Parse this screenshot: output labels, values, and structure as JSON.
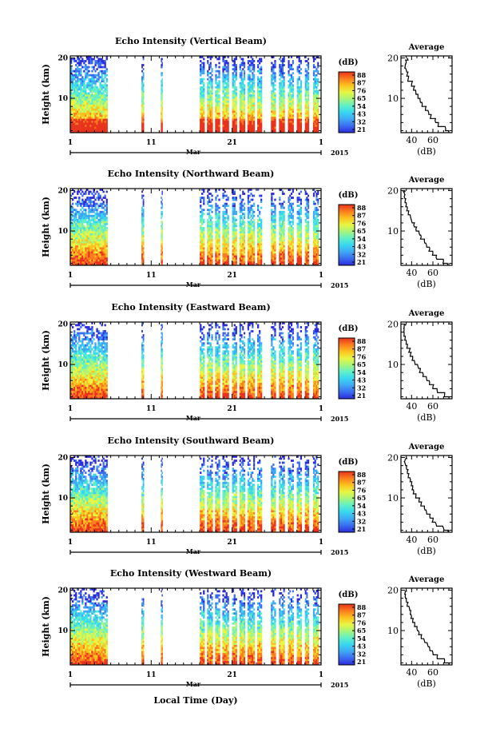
{
  "chart_data": {
    "type": "heatmap",
    "figure": {
      "xlabel": "Local Time (Day)",
      "month_label": "Mar",
      "year_label": "2015"
    },
    "colormap": [
      "#2b2bd9",
      "#3a6cf0",
      "#3fa8f5",
      "#38d6f0",
      "#5ff0c8",
      "#a8f57a",
      "#e8f542",
      "#fcc21f",
      "#fb7d1e",
      "#e8331c"
    ],
    "panels": [
      {
        "title": "Echo Intensity (Vertical Beam)",
        "ylabel": "Height (km)",
        "y_ticks": [
          "20",
          "10"
        ],
        "x_ticks": [
          "1",
          "11",
          "21",
          "1"
        ],
        "x_range_days": [
          1,
          32
        ],
        "y_range_km": [
          1.5,
          20.5
        ],
        "colorbar_unit": "(dB)",
        "colorbar_labels": [
          "88",
          "87",
          "76",
          "65",
          "54",
          "43",
          "32",
          "21"
        ],
        "avg_title": "Average",
        "avg_xlabel": "(dB)",
        "avg_x_ticks": [
          "40",
          "60"
        ],
        "avg_xlim": [
          30,
          78
        ],
        "avg_profile": [
          [
            75,
            1.5
          ],
          [
            72,
            2.5
          ],
          [
            65,
            3.5
          ],
          [
            62,
            4.5
          ],
          [
            58,
            5.5
          ],
          [
            56,
            6.5
          ],
          [
            53,
            7.5
          ],
          [
            50,
            8.5
          ],
          [
            48,
            9.5
          ],
          [
            46,
            10.5
          ],
          [
            44,
            11.5
          ],
          [
            42,
            12.5
          ],
          [
            40,
            13.5
          ],
          [
            37,
            15
          ],
          [
            36,
            16
          ],
          [
            35,
            17
          ],
          [
            34,
            18
          ],
          [
            35,
            19
          ],
          [
            36,
            20
          ]
        ]
      },
      {
        "title": "Echo Intensity (Northward Beam)",
        "ylabel": "Height (km)",
        "y_ticks": [
          "20",
          "10"
        ],
        "x_ticks": [
          "1",
          "11",
          "21",
          "1"
        ],
        "x_range_days": [
          1,
          32
        ],
        "y_range_km": [
          1.5,
          20.5
        ],
        "colorbar_unit": "(dB)",
        "colorbar_labels": [
          "88",
          "87",
          "76",
          "65",
          "54",
          "43",
          "32",
          "21"
        ],
        "avg_title": "Average",
        "avg_xlabel": "(dB)",
        "avg_x_ticks": [
          "40",
          "60"
        ],
        "avg_xlim": [
          30,
          78
        ],
        "avg_profile": [
          [
            74,
            1.5
          ],
          [
            70,
            2.5
          ],
          [
            63,
            3.5
          ],
          [
            60,
            4.5
          ],
          [
            57,
            5.5
          ],
          [
            54,
            6.5
          ],
          [
            52,
            7.5
          ],
          [
            49,
            8.5
          ],
          [
            47,
            9.5
          ],
          [
            44,
            10.5
          ],
          [
            42,
            11.5
          ],
          [
            40,
            12.5
          ],
          [
            39,
            13.5
          ],
          [
            37,
            14.5
          ],
          [
            36,
            15.5
          ],
          [
            35,
            16.5
          ],
          [
            34,
            17.5
          ],
          [
            33,
            18.5
          ],
          [
            33,
            19.5
          ],
          [
            34,
            20
          ]
        ]
      },
      {
        "title": "Echo Intensity (Eastward Beam)",
        "ylabel": "Height (km)",
        "y_ticks": [
          "20",
          "10"
        ],
        "x_ticks": [
          "1",
          "11",
          "21",
          "1"
        ],
        "x_range_days": [
          1,
          32
        ],
        "y_range_km": [
          1.5,
          20.5
        ],
        "colorbar_unit": "(dB)",
        "colorbar_labels": [
          "88",
          "87",
          "76",
          "65",
          "54",
          "43",
          "32",
          "21"
        ],
        "avg_title": "Average",
        "avg_xlabel": "(dB)",
        "avg_x_ticks": [
          "40",
          "60"
        ],
        "avg_xlim": [
          30,
          78
        ],
        "avg_profile": [
          [
            75,
            1.5
          ],
          [
            71,
            2.5
          ],
          [
            64,
            3.5
          ],
          [
            60,
            4.5
          ],
          [
            57,
            5.5
          ],
          [
            54,
            6.5
          ],
          [
            51,
            7.5
          ],
          [
            48,
            8.5
          ],
          [
            46,
            9.5
          ],
          [
            43,
            10.5
          ],
          [
            41,
            11.5
          ],
          [
            39,
            12.5
          ],
          [
            38,
            13.5
          ],
          [
            36,
            14.5
          ],
          [
            35,
            15.5
          ],
          [
            34,
            16.5
          ],
          [
            33,
            17.5
          ],
          [
            33,
            18.5
          ],
          [
            33,
            19.5
          ],
          [
            34,
            20
          ]
        ]
      },
      {
        "title": "Echo Intensity (Southward Beam)",
        "ylabel": "Height (km)",
        "y_ticks": [
          "20",
          "10"
        ],
        "x_ticks": [
          "1",
          "11",
          "21",
          "1"
        ],
        "x_range_days": [
          1,
          32
        ],
        "y_range_km": [
          1.5,
          20.5
        ],
        "colorbar_unit": "(dB)",
        "colorbar_labels": [
          "88",
          "87",
          "76",
          "65",
          "54",
          "43",
          "32",
          "21"
        ],
        "avg_title": "Average",
        "avg_xlabel": "(dB)",
        "avg_x_ticks": [
          "40",
          "60"
        ],
        "avg_xlim": [
          30,
          78
        ],
        "avg_profile": [
          [
            74,
            1.5
          ],
          [
            70,
            2.5
          ],
          [
            63,
            3.5
          ],
          [
            60,
            4.5
          ],
          [
            57,
            5.5
          ],
          [
            54,
            6.5
          ],
          [
            52,
            7.5
          ],
          [
            49,
            8.5
          ],
          [
            47,
            9.5
          ],
          [
            44,
            10.5
          ],
          [
            42,
            11.5
          ],
          [
            41,
            12.5
          ],
          [
            40,
            13.5
          ],
          [
            39,
            14.5
          ],
          [
            37,
            15.5
          ],
          [
            36,
            16.5
          ],
          [
            35,
            17.5
          ],
          [
            34,
            18.5
          ],
          [
            34,
            19.5
          ],
          [
            35,
            20
          ]
        ]
      },
      {
        "title": "Echo Intensity (Westward Beam)",
        "ylabel": "Height (km)",
        "y_ticks": [
          "20",
          "10"
        ],
        "x_ticks": [
          "1",
          "11",
          "21",
          "1"
        ],
        "x_range_days": [
          1,
          32
        ],
        "y_range_km": [
          1.5,
          20.5
        ],
        "colorbar_unit": "(dB)",
        "colorbar_labels": [
          "88",
          "87",
          "76",
          "65",
          "54",
          "43",
          "32",
          "21"
        ],
        "avg_title": "Average",
        "avg_xlabel": "(dB)",
        "avg_x_ticks": [
          "40",
          "60"
        ],
        "avg_xlim": [
          30,
          78
        ],
        "avg_profile": [
          [
            75,
            1.5
          ],
          [
            71,
            2.5
          ],
          [
            64,
            3.5
          ],
          [
            60,
            4.5
          ],
          [
            57,
            5.5
          ],
          [
            55,
            6.5
          ],
          [
            52,
            7.5
          ],
          [
            49,
            8.5
          ],
          [
            47,
            9.5
          ],
          [
            45,
            10.5
          ],
          [
            43,
            11.5
          ],
          [
            41,
            12.5
          ],
          [
            40,
            13.5
          ],
          [
            39,
            14.5
          ],
          [
            38,
            15.5
          ],
          [
            36,
            16.5
          ],
          [
            35,
            17.5
          ],
          [
            34,
            18.5
          ],
          [
            34,
            19.5
          ],
          [
            35,
            20
          ]
        ]
      }
    ],
    "observation_day_ranges": [
      [
        1,
        5.6
      ],
      [
        9.8,
        10.1
      ],
      [
        12.2,
        12.4
      ],
      [
        17,
        17.6
      ],
      [
        17.9,
        18.6
      ],
      [
        18.9,
        19.5
      ],
      [
        19.8,
        20.6
      ],
      [
        21,
        21.6
      ],
      [
        21.9,
        22.6
      ],
      [
        22.9,
        23.8
      ],
      [
        24.1,
        24.7
      ],
      [
        25.8,
        26.4
      ],
      [
        26.8,
        27.5
      ],
      [
        27.9,
        28.6
      ],
      [
        29,
        29.6
      ],
      [
        30,
        30.5
      ],
      [
        31,
        31.7
      ]
    ],
    "minor_ticks_per_day": 1
  }
}
